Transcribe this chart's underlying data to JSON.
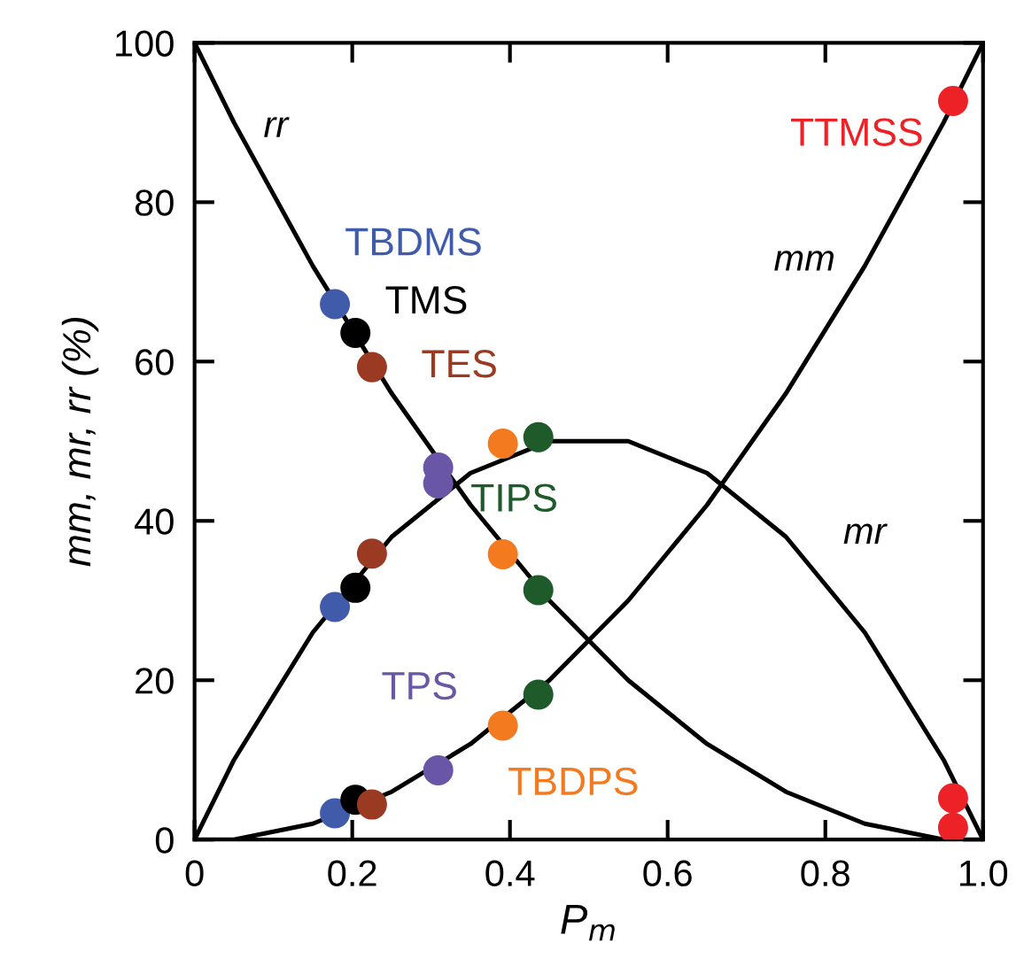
{
  "chart_data": {
    "type": "line",
    "xlabel": "P$_{m}$",
    "ylabel": "mm, mr, rr (%)",
    "xlim": [
      0,
      1
    ],
    "ylim": [
      0,
      100
    ],
    "xticks": [
      0,
      0.2,
      0.4,
      0.6,
      0.8,
      {
        "value": 1,
        "label": "1.0"
      }
    ],
    "yticks": [
      0,
      20,
      40,
      60,
      80,
      100
    ],
    "grid": false,
    "series": [
      {
        "name": "rr",
        "color": "#000000",
        "line_style": "solid",
        "marker": "none",
        "x": [
          0,
          0.05,
          0.1,
          0.15,
          0.2,
          0.25,
          0.3,
          0.35,
          0.45,
          0.5,
          0.55,
          0.6,
          0.65,
          0.7,
          0.75,
          0.8,
          0.85,
          0.9,
          0.95,
          1
        ],
        "values": [
          100,
          90,
          81,
          72,
          64,
          56,
          49,
          42,
          30,
          25,
          20,
          16,
          12,
          9,
          6,
          4,
          2,
          1,
          0,
          0
        ]
      },
      {
        "name": "mm",
        "color": "#000000",
        "line_style": "solid",
        "marker": "none",
        "x": [
          0,
          0.05,
          0.1,
          0.15,
          0.2,
          0.25,
          0.35,
          0.4,
          0.45,
          0.5,
          0.55,
          0.6,
          0.65,
          0.7,
          0.75,
          0.8,
          0.85,
          0.9,
          0.95,
          1
        ],
        "values": [
          0,
          0,
          1,
          2,
          4,
          6,
          12,
          16,
          20,
          25,
          30,
          36,
          42,
          49,
          56,
          64,
          72,
          81,
          90,
          100
        ]
      },
      {
        "name": "mr",
        "color": "#000000",
        "line_style": "solid",
        "marker": "none",
        "x": [
          0,
          0.05,
          0.1,
          0.15,
          0.2,
          0.25,
          0.3,
          0.35,
          0.4,
          0.45,
          0.5,
          0.55,
          0.6,
          0.65,
          0.7,
          0.75,
          0.8,
          0.85,
          0.9,
          0.95,
          1
        ],
        "values": [
          0,
          10,
          18,
          26,
          32,
          38,
          42,
          46,
          48,
          50,
          50,
          50,
          48,
          46,
          42,
          38,
          32,
          26,
          18,
          10,
          0
        ]
      },
      {
        "name": "TBDMS",
        "type": "scatter",
        "color": "#3f5ba9",
        "marker": "circle",
        "x": [
          0.178,
          0.178,
          0.178
        ],
        "values": [
          3.3,
          29.2,
          67.2
        ]
      },
      {
        "name": "TMS",
        "type": "scatter",
        "color": "#000000",
        "marker": "circle",
        "x": [
          0.204,
          0.204,
          0.204
        ],
        "values": [
          5.0,
          31.6,
          63.6
        ]
      },
      {
        "name": "TES",
        "type": "scatter",
        "color": "#9a3a22",
        "marker": "circle",
        "x": [
          0.225,
          0.225,
          0.225
        ],
        "values": [
          4.4,
          35.9,
          59.3
        ]
      },
      {
        "name": "TPS",
        "type": "scatter",
        "color": "#6a56a6",
        "marker": "circle",
        "x": [
          0.309,
          0.309,
          0.309
        ],
        "values": [
          8.7,
          44.7,
          46.7
        ]
      },
      {
        "name": "TBDPS",
        "type": "scatter",
        "color": "#f47a20",
        "marker": "circle",
        "x": [
          0.391,
          0.391,
          0.391
        ],
        "values": [
          14.3,
          49.7,
          35.8
        ]
      },
      {
        "name": "TIPS",
        "type": "scatter",
        "color": "#1e5a2a",
        "marker": "circle",
        "x": [
          0.436,
          0.436,
          0.436
        ],
        "values": [
          18.2,
          50.5,
          31.3
        ]
      },
      {
        "name": "TTMSS",
        "type": "scatter",
        "color": "#ec2227",
        "marker": "circle",
        "x": [
          0.962,
          0.962,
          0.962
        ],
        "values": [
          92.7,
          5.2,
          1.5
        ]
      }
    ]
  }
}
